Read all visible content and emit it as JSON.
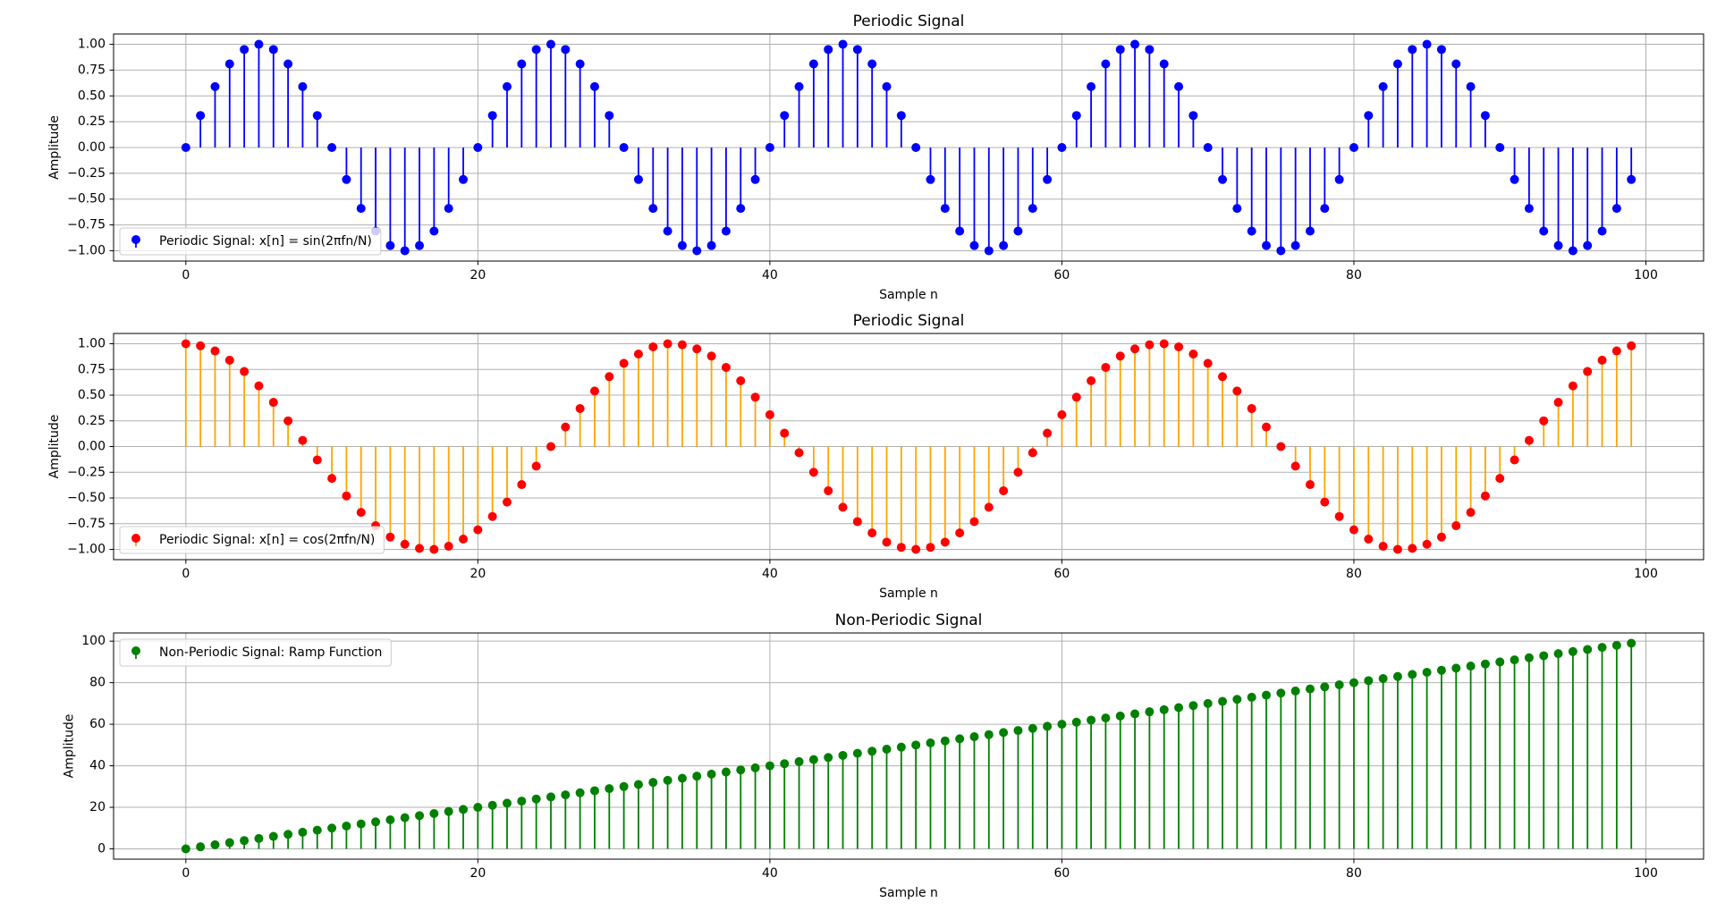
{
  "chart_data": [
    {
      "type": "stem",
      "title": "Periodic Signal",
      "x_label": "Sample n",
      "y_label": "Amplitude",
      "x": [
        0,
        1,
        2,
        3,
        4,
        5,
        6,
        7,
        8,
        9,
        10,
        11,
        12,
        13,
        14,
        15,
        16,
        17,
        18,
        19,
        20,
        21,
        22,
        23,
        24,
        25,
        26,
        27,
        28,
        29,
        30,
        31,
        32,
        33,
        34,
        35,
        36,
        37,
        38,
        39,
        40,
        41,
        42,
        43,
        44,
        45,
        46,
        47,
        48,
        49,
        50,
        51,
        52,
        53,
        54,
        55,
        56,
        57,
        58,
        59,
        60,
        61,
        62,
        63,
        64,
        65,
        66,
        67,
        68,
        69,
        70,
        71,
        72,
        73,
        74,
        75,
        76,
        77,
        78,
        79,
        80,
        81,
        82,
        83,
        84,
        85,
        86,
        87,
        88,
        89,
        90,
        91,
        92,
        93,
        94,
        95,
        96,
        97,
        98,
        99
      ],
      "series": [
        {
          "name": "Periodic Signal: x[n] = sin(2πfn/N)",
          "color": "#0000ff",
          "stem_color": "#0000ff",
          "values": [
            0,
            0.31,
            0.59,
            0.81,
            0.95,
            1,
            0.95,
            0.81,
            0.59,
            0.31,
            0,
            -0.31,
            -0.59,
            -0.81,
            -0.95,
            -1,
            -0.95,
            -0.81,
            -0.59,
            -0.31,
            0,
            0.31,
            0.59,
            0.81,
            0.95,
            1,
            0.95,
            0.81,
            0.59,
            0.31,
            0,
            -0.31,
            -0.59,
            -0.81,
            -0.95,
            -1,
            -0.95,
            -0.81,
            -0.59,
            -0.31,
            0,
            0.31,
            0.59,
            0.81,
            0.95,
            1,
            0.95,
            0.81,
            0.59,
            0.31,
            0,
            -0.31,
            -0.59,
            -0.81,
            -0.95,
            -1,
            -0.95,
            -0.81,
            -0.59,
            -0.31,
            0,
            0.31,
            0.59,
            0.81,
            0.95,
            1,
            0.95,
            0.81,
            0.59,
            0.31,
            0,
            -0.31,
            -0.59,
            -0.81,
            -0.95,
            -1,
            -0.95,
            -0.81,
            -0.59,
            -0.31,
            0,
            0.31,
            0.59,
            0.81,
            0.95,
            1,
            0.95,
            0.81,
            0.59,
            0.31,
            0,
            -0.31,
            -0.59,
            -0.81,
            -0.95,
            -1,
            -0.95,
            -0.81,
            -0.59,
            -0.31
          ]
        }
      ],
      "xlim": [
        -4.95,
        103.95
      ],
      "ylim": [
        -1.1,
        1.1
      ],
      "xticks": [
        0,
        20,
        40,
        60,
        80,
        100
      ],
      "yticks": [
        {
          "value": -1,
          "label": "−1.00"
        },
        {
          "value": -0.75,
          "label": "−0.75"
        },
        {
          "value": -0.5,
          "label": "−0.50"
        },
        {
          "value": -0.25,
          "label": "−0.25"
        },
        {
          "value": 0,
          "label": "0.00"
        },
        {
          "value": 0.25,
          "label": "0.25"
        },
        {
          "value": 0.5,
          "label": "0.50"
        },
        {
          "value": 0.75,
          "label": "0.75"
        },
        {
          "value": 1,
          "label": "1.00"
        }
      ],
      "grid": true,
      "legend": "lower left"
    },
    {
      "type": "stem",
      "title": "Periodic Signal",
      "x_label": "Sample n",
      "y_label": "Amplitude",
      "x": [
        0,
        1,
        2,
        3,
        4,
        5,
        6,
        7,
        8,
        9,
        10,
        11,
        12,
        13,
        14,
        15,
        16,
        17,
        18,
        19,
        20,
        21,
        22,
        23,
        24,
        25,
        26,
        27,
        28,
        29,
        30,
        31,
        32,
        33,
        34,
        35,
        36,
        37,
        38,
        39,
        40,
        41,
        42,
        43,
        44,
        45,
        46,
        47,
        48,
        49,
        50,
        51,
        52,
        53,
        54,
        55,
        56,
        57,
        58,
        59,
        60,
        61,
        62,
        63,
        64,
        65,
        66,
        67,
        68,
        69,
        70,
        71,
        72,
        73,
        74,
        75,
        76,
        77,
        78,
        79,
        80,
        81,
        82,
        83,
        84,
        85,
        86,
        87,
        88,
        89,
        90,
        91,
        92,
        93,
        94,
        95,
        96,
        97,
        98,
        99
      ],
      "series": [
        {
          "name": "Periodic Signal: x[n] = cos(2πfn/N)",
          "color": "#ff0000",
          "stem_color": "#ffa500",
          "values": [
            1,
            0.98,
            0.93,
            0.84,
            0.73,
            0.59,
            0.43,
            0.25,
            0.06,
            -0.13,
            -0.31,
            -0.48,
            -0.64,
            -0.77,
            -0.88,
            -0.95,
            -0.99,
            -1,
            -0.97,
            -0.9,
            -0.81,
            -0.68,
            -0.54,
            -0.37,
            -0.19,
            0,
            0.19,
            0.37,
            0.54,
            0.68,
            0.81,
            0.9,
            0.97,
            1,
            0.99,
            0.95,
            0.88,
            0.77,
            0.64,
            0.48,
            0.31,
            0.13,
            -0.06,
            -0.25,
            -0.43,
            -0.59,
            -0.73,
            -0.84,
            -0.93,
            -0.98,
            -1,
            -0.98,
            -0.93,
            -0.84,
            -0.73,
            -0.59,
            -0.43,
            -0.25,
            -0.06,
            0.13,
            0.31,
            0.48,
            0.64,
            0.77,
            0.88,
            0.95,
            0.99,
            1,
            0.97,
            0.9,
            0.81,
            0.68,
            0.54,
            0.37,
            0.19,
            0,
            -0.19,
            -0.37,
            -0.54,
            -0.68,
            -0.81,
            -0.9,
            -0.97,
            -1,
            -0.99,
            -0.95,
            -0.88,
            -0.77,
            -0.64,
            -0.48,
            -0.31,
            -0.13,
            0.06,
            0.25,
            0.43,
            0.59,
            0.73,
            0.84,
            0.93,
            0.98
          ]
        }
      ],
      "xlim": [
        -4.95,
        103.95
      ],
      "ylim": [
        -1.1,
        1.1
      ],
      "xticks": [
        0,
        20,
        40,
        60,
        80,
        100
      ],
      "yticks": [
        {
          "value": -1,
          "label": "−1.00"
        },
        {
          "value": -0.75,
          "label": "−0.75"
        },
        {
          "value": -0.5,
          "label": "−0.50"
        },
        {
          "value": -0.25,
          "label": "−0.25"
        },
        {
          "value": 0,
          "label": "0.00"
        },
        {
          "value": 0.25,
          "label": "0.25"
        },
        {
          "value": 0.5,
          "label": "0.50"
        },
        {
          "value": 0.75,
          "label": "0.75"
        },
        {
          "value": 1,
          "label": "1.00"
        }
      ],
      "grid": true,
      "legend": "lower left"
    },
    {
      "type": "stem",
      "title": "Non-Periodic Signal",
      "x_label": "Sample n",
      "y_label": "Amplitude",
      "x": [
        0,
        1,
        2,
        3,
        4,
        5,
        6,
        7,
        8,
        9,
        10,
        11,
        12,
        13,
        14,
        15,
        16,
        17,
        18,
        19,
        20,
        21,
        22,
        23,
        24,
        25,
        26,
        27,
        28,
        29,
        30,
        31,
        32,
        33,
        34,
        35,
        36,
        37,
        38,
        39,
        40,
        41,
        42,
        43,
        44,
        45,
        46,
        47,
        48,
        49,
        50,
        51,
        52,
        53,
        54,
        55,
        56,
        57,
        58,
        59,
        60,
        61,
        62,
        63,
        64,
        65,
        66,
        67,
        68,
        69,
        70,
        71,
        72,
        73,
        74,
        75,
        76,
        77,
        78,
        79,
        80,
        81,
        82,
        83,
        84,
        85,
        86,
        87,
        88,
        89,
        90,
        91,
        92,
        93,
        94,
        95,
        96,
        97,
        98,
        99
      ],
      "series": [
        {
          "name": "Non-Periodic Signal: Ramp Function",
          "color": "#008000",
          "stem_color": "#008000",
          "values": [
            0,
            1,
            2,
            3,
            4,
            5,
            6,
            7,
            8,
            9,
            10,
            11,
            12,
            13,
            14,
            15,
            16,
            17,
            18,
            19,
            20,
            21,
            22,
            23,
            24,
            25,
            26,
            27,
            28,
            29,
            30,
            31,
            32,
            33,
            34,
            35,
            36,
            37,
            38,
            39,
            40,
            41,
            42,
            43,
            44,
            45,
            46,
            47,
            48,
            49,
            50,
            51,
            52,
            53,
            54,
            55,
            56,
            57,
            58,
            59,
            60,
            61,
            62,
            63,
            64,
            65,
            66,
            67,
            68,
            69,
            70,
            71,
            72,
            73,
            74,
            75,
            76,
            77,
            78,
            79,
            80,
            81,
            82,
            83,
            84,
            85,
            86,
            87,
            88,
            89,
            90,
            91,
            92,
            93,
            94,
            95,
            96,
            97,
            98,
            99
          ]
        }
      ],
      "xlim": [
        -4.95,
        103.95
      ],
      "ylim": [
        -4.95,
        103.95
      ],
      "xticks": [
        0,
        20,
        40,
        60,
        80,
        100
      ],
      "yticks": [
        0,
        20,
        40,
        60,
        80,
        100
      ],
      "grid": true,
      "legend": "upper left"
    }
  ]
}
